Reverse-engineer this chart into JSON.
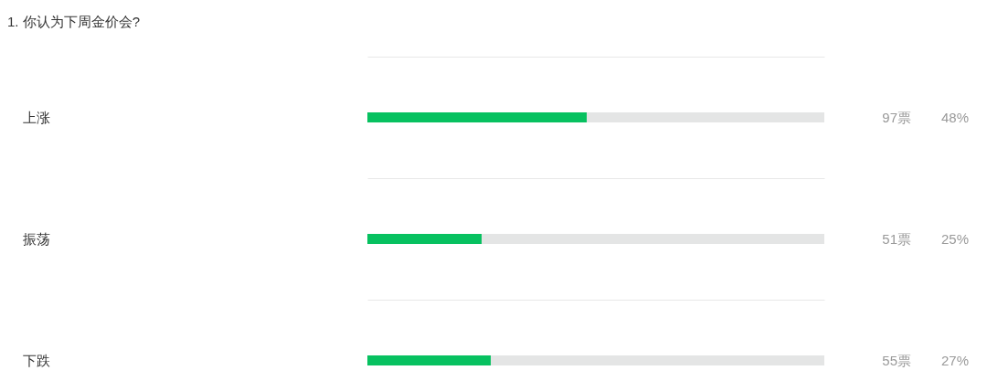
{
  "chart_data": {
    "type": "bar",
    "orientation": "horizontal",
    "title": "1. 你认为下周金价会?",
    "categories": [
      "上涨",
      "振荡",
      "下跌"
    ],
    "values": [
      48,
      25,
      27
    ],
    "value_labels": [
      "48%",
      "25%",
      "27%"
    ],
    "color": "#07c160",
    "xlim": [
      0,
      100
    ],
    "grid": "y",
    "annotations": [
      "97票",
      "51票",
      "55票"
    ]
  }
}
